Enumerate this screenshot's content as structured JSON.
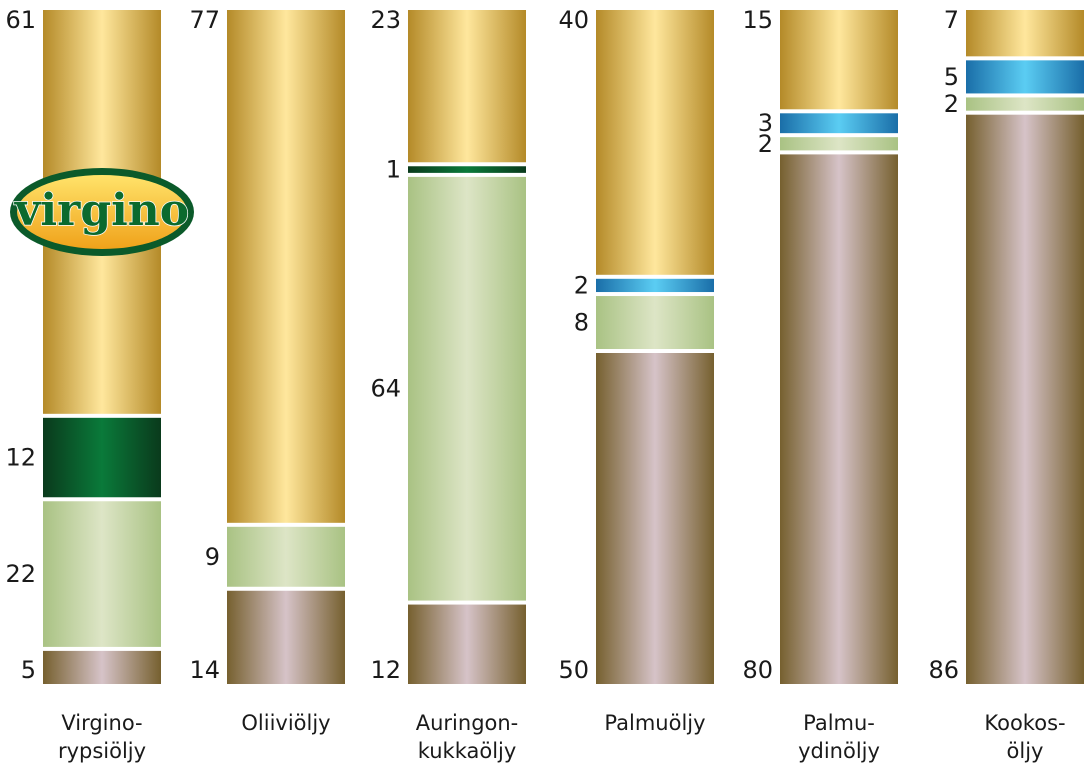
{
  "chart_data": {
    "type": "bar",
    "stacked": true,
    "title": "",
    "xlabel": "",
    "ylabel": "",
    "ylim": [
      0,
      100
    ],
    "categories": [
      [
        "Virgino-",
        "rypsiöljy"
      ],
      [
        "Oliiviöljy"
      ],
      [
        "Auringon-",
        "kukkaöljy"
      ],
      [
        "Palmuöljy"
      ],
      [
        "Palmu-",
        "ydinöljy"
      ],
      [
        "Kookos-",
        "öljy"
      ]
    ],
    "series": [
      {
        "key": "s1",
        "color": "#d9b04a",
        "values": [
          61,
          77,
          23,
          40,
          15,
          7
        ]
      },
      {
        "key": "s2",
        "color": "#0d6a35",
        "values": [
          12,
          0,
          1,
          0,
          0,
          0
        ]
      },
      {
        "key": "s3",
        "color": "#2a97d3",
        "values": [
          0,
          0,
          0,
          2,
          3,
          5
        ]
      },
      {
        "key": "s4",
        "color": "#bccf98",
        "values": [
          22,
          9,
          64,
          8,
          2,
          2
        ]
      },
      {
        "key": "s5",
        "color": "#a08b72",
        "values": [
          5,
          14,
          12,
          50,
          80,
          86
        ]
      }
    ],
    "logo": {
      "text": "virgino",
      "position": "on first bar"
    }
  }
}
